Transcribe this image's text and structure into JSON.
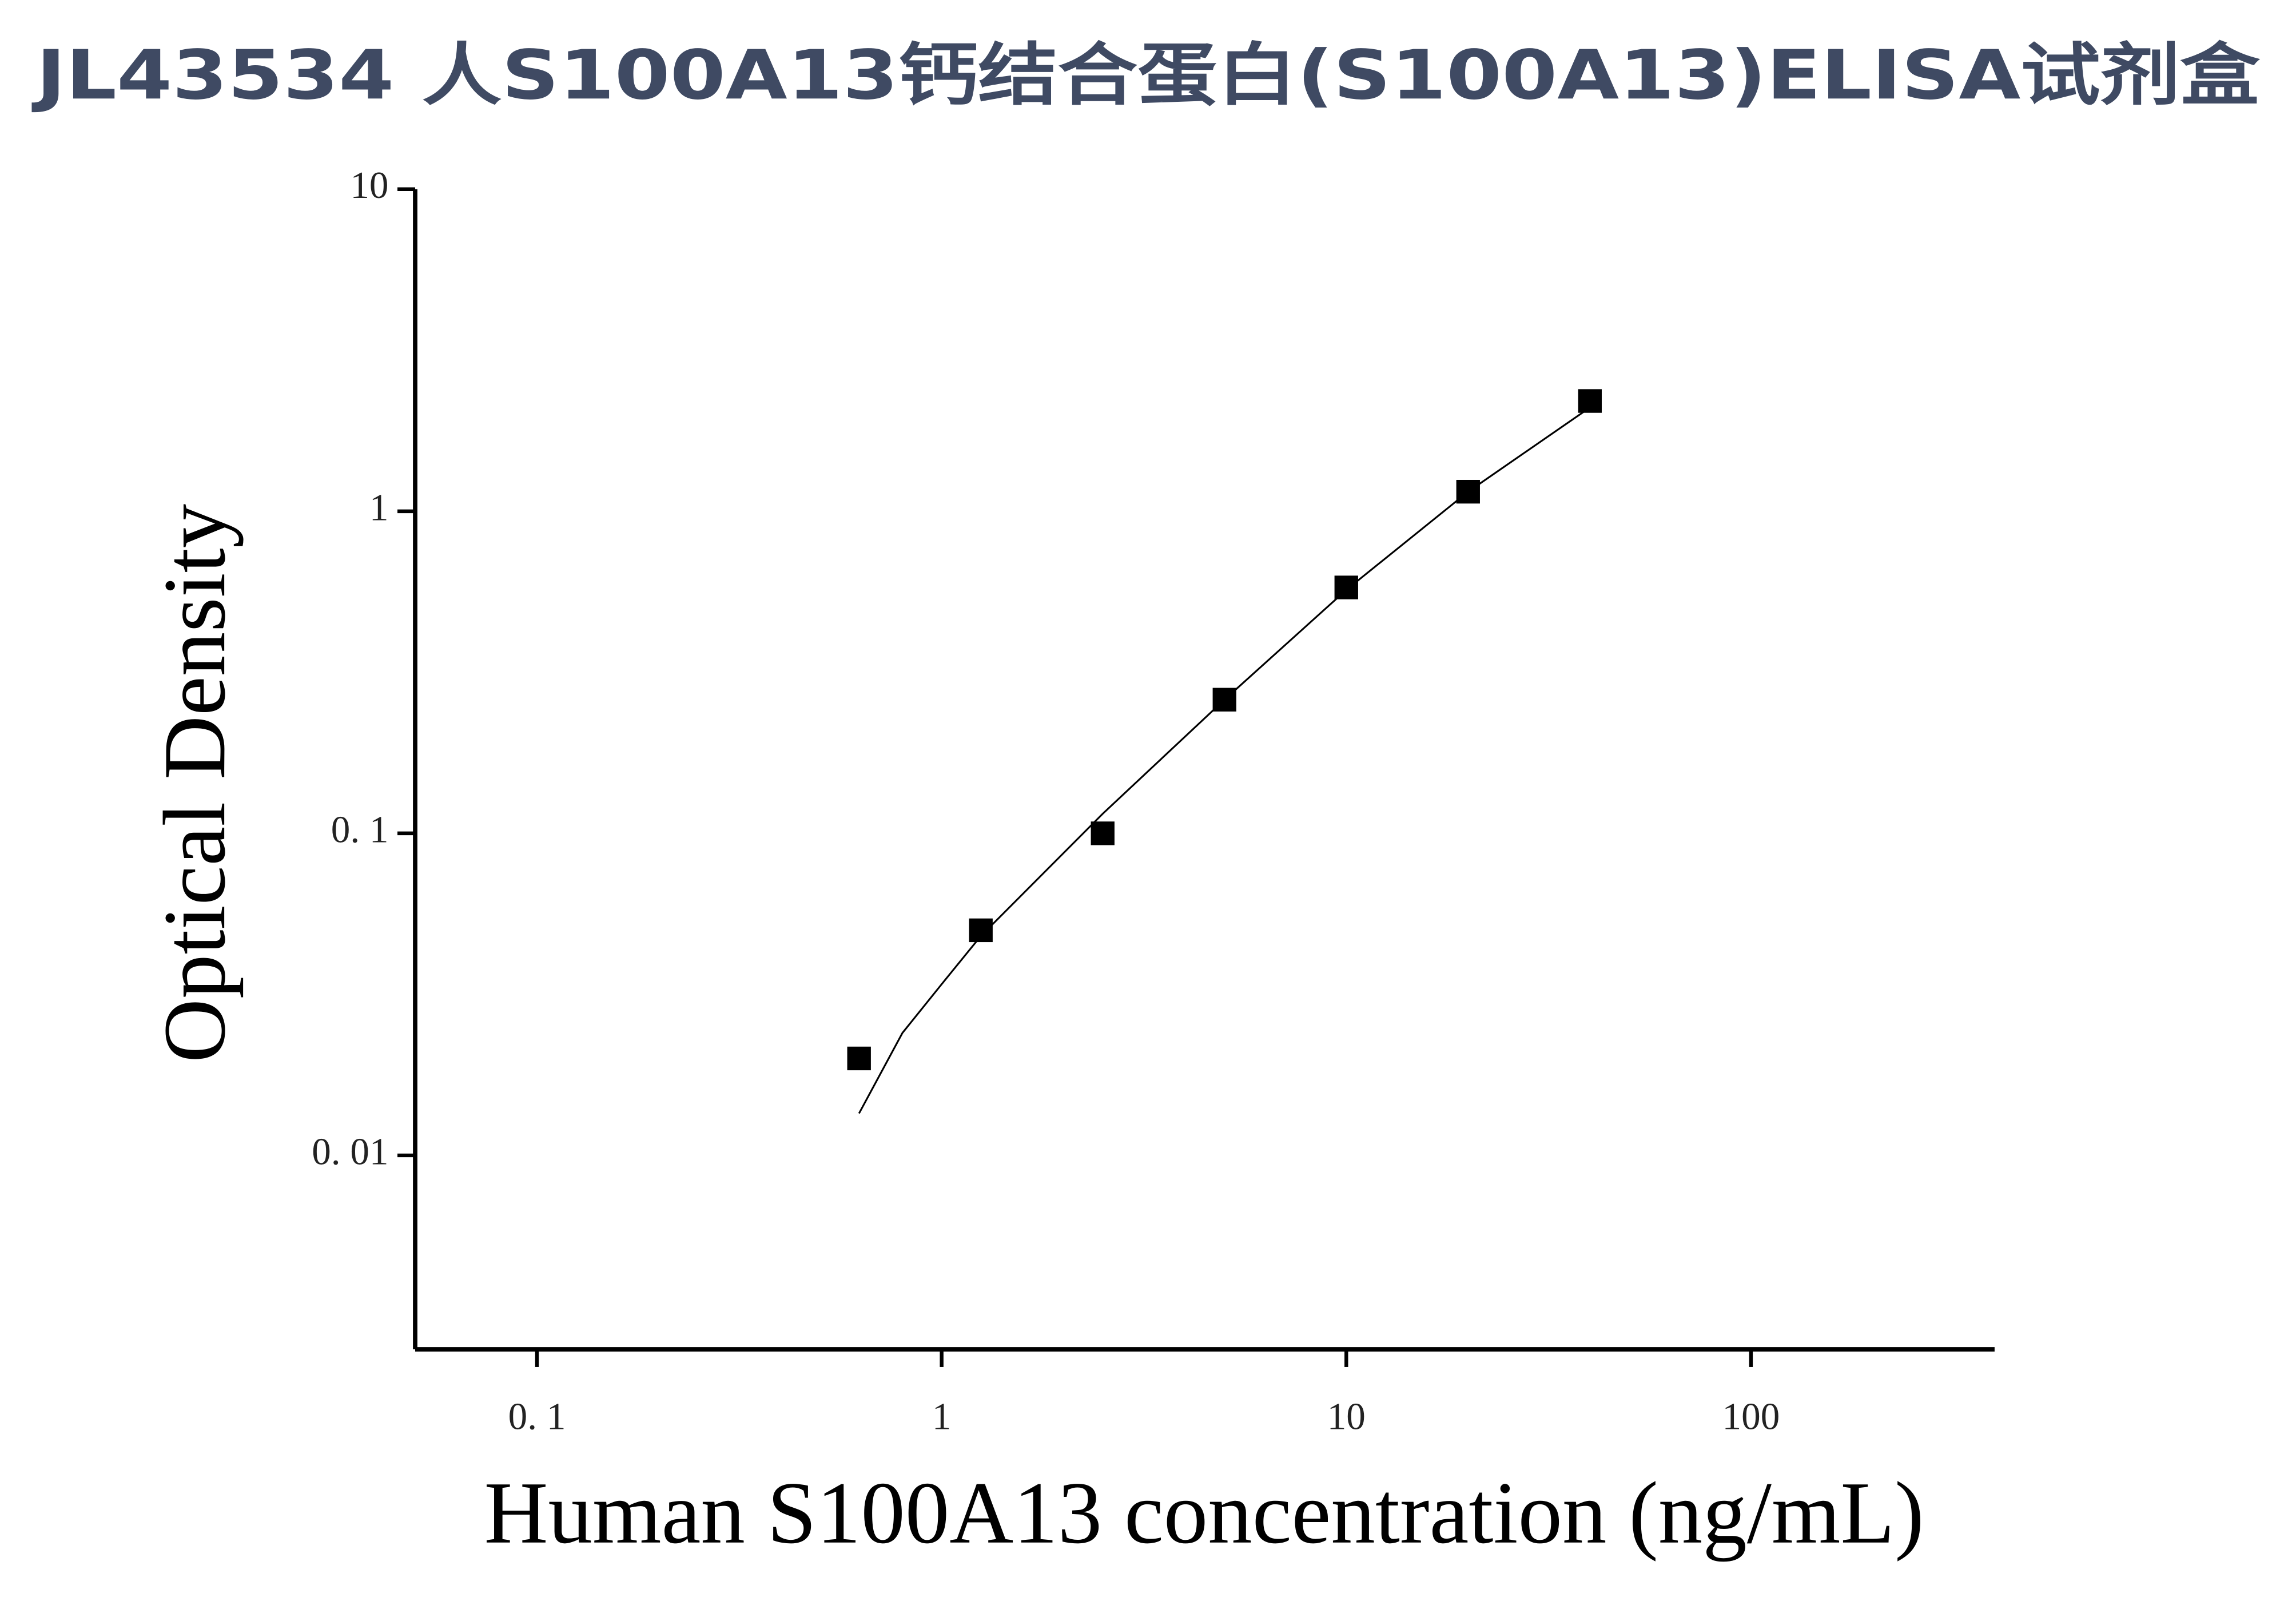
{
  "chart_data": {
    "type": "scatter",
    "title": "JL43534 人S100A13钙结合蛋白(S100A13)ELISA试剂盒",
    "x_label": "Human S100A13 concentration (ng/mL)",
    "y_label": "Optical Density",
    "x": [
      0.625,
      1.25,
      2.5,
      5,
      10,
      20,
      40
    ],
    "values": [
      0.02,
      0.05,
      0.1,
      0.26,
      0.58,
      1.15,
      2.2
    ],
    "color": "#000000",
    "curve": {
      "x": [
        0.625,
        0.8,
        1,
        1.25,
        2.5,
        5,
        10,
        20,
        40
      ],
      "values": [
        0.0135,
        0.024,
        0.034,
        0.048,
        0.115,
        0.26,
        0.57,
        1.15,
        2.1
      ]
    },
    "xlim": [
      0.05,
      400
    ],
    "ylim": [
      0.0025,
      10
    ],
    "xscale": "log",
    "yscale": "log",
    "xticks": [
      {
        "value": 0.1,
        "label": "0. 1"
      },
      1,
      10,
      100
    ],
    "yticks": [
      {
        "value": 0.01,
        "label": "0. 01"
      },
      {
        "value": 0.1,
        "label": "0. 1"
      },
      1,
      10
    ],
    "grid": false
  }
}
